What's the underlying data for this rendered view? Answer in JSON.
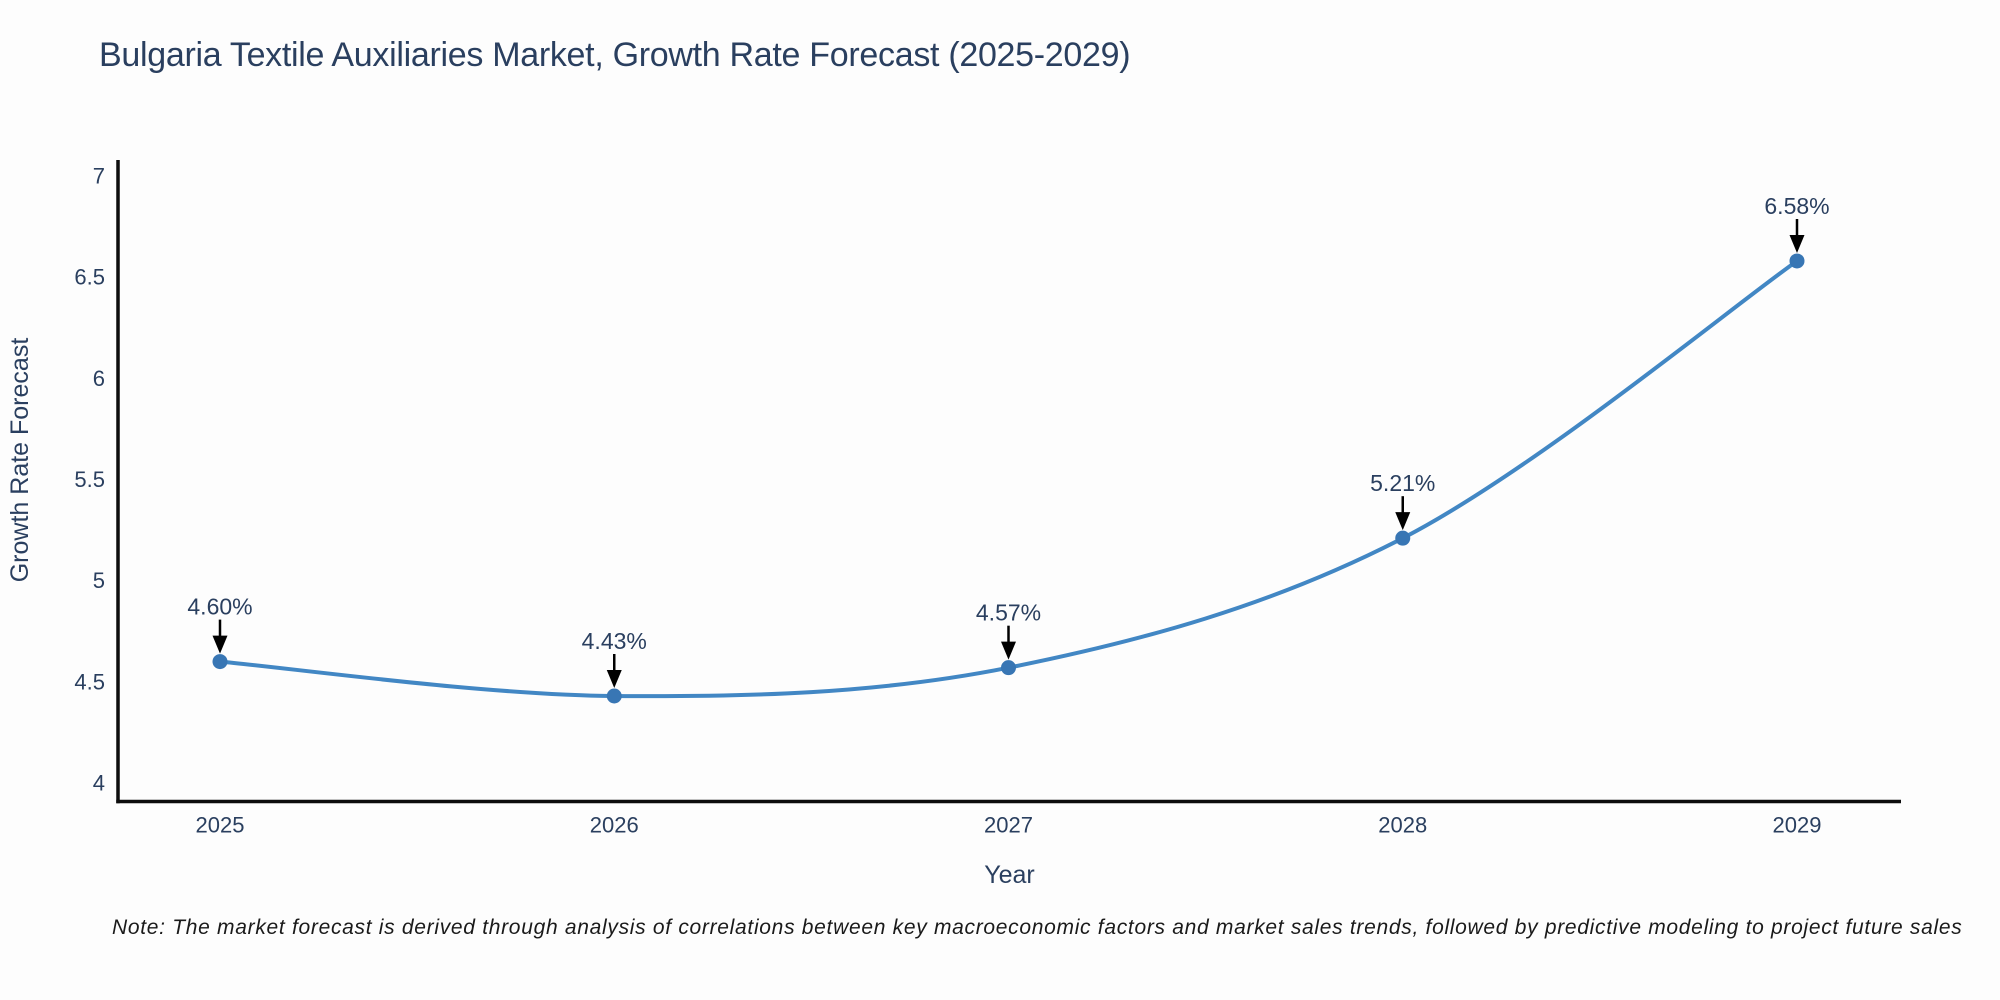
{
  "title": "Bulgaria Textile Auxiliaries Market, Growth Rate Forecast (2025-2029)",
  "note": "Note: The market forecast is derived through analysis of correlations between key macroeconomic factors and market sales trends, followed by predictive modeling to project future sales",
  "chart_data": {
    "type": "line",
    "title": "Bulgaria Textile Auxiliaries Market, Growth Rate Forecast (2025-2029)",
    "xlabel": "Year",
    "ylabel": "Growth Rate Forecast",
    "categories": [
      "2025",
      "2026",
      "2027",
      "2028",
      "2029"
    ],
    "values": [
      4.6,
      4.43,
      4.57,
      5.21,
      6.58
    ],
    "point_labels": [
      "4.60%",
      "4.43%",
      "4.57%",
      "5.21%",
      "6.58%"
    ],
    "ylim": [
      4,
      7
    ],
    "yticks": [
      4,
      4.5,
      5,
      5.5,
      6,
      6.5,
      7
    ],
    "line_shape": "spline",
    "grid": "off",
    "legend": "none",
    "colors": {
      "line": "#4287c4",
      "marker": "#3876b4",
      "axis": "#0d0d0d",
      "label_text": "#2a3f5f",
      "annotation_arrow": "#000000",
      "background": "#fdfdfd"
    }
  }
}
